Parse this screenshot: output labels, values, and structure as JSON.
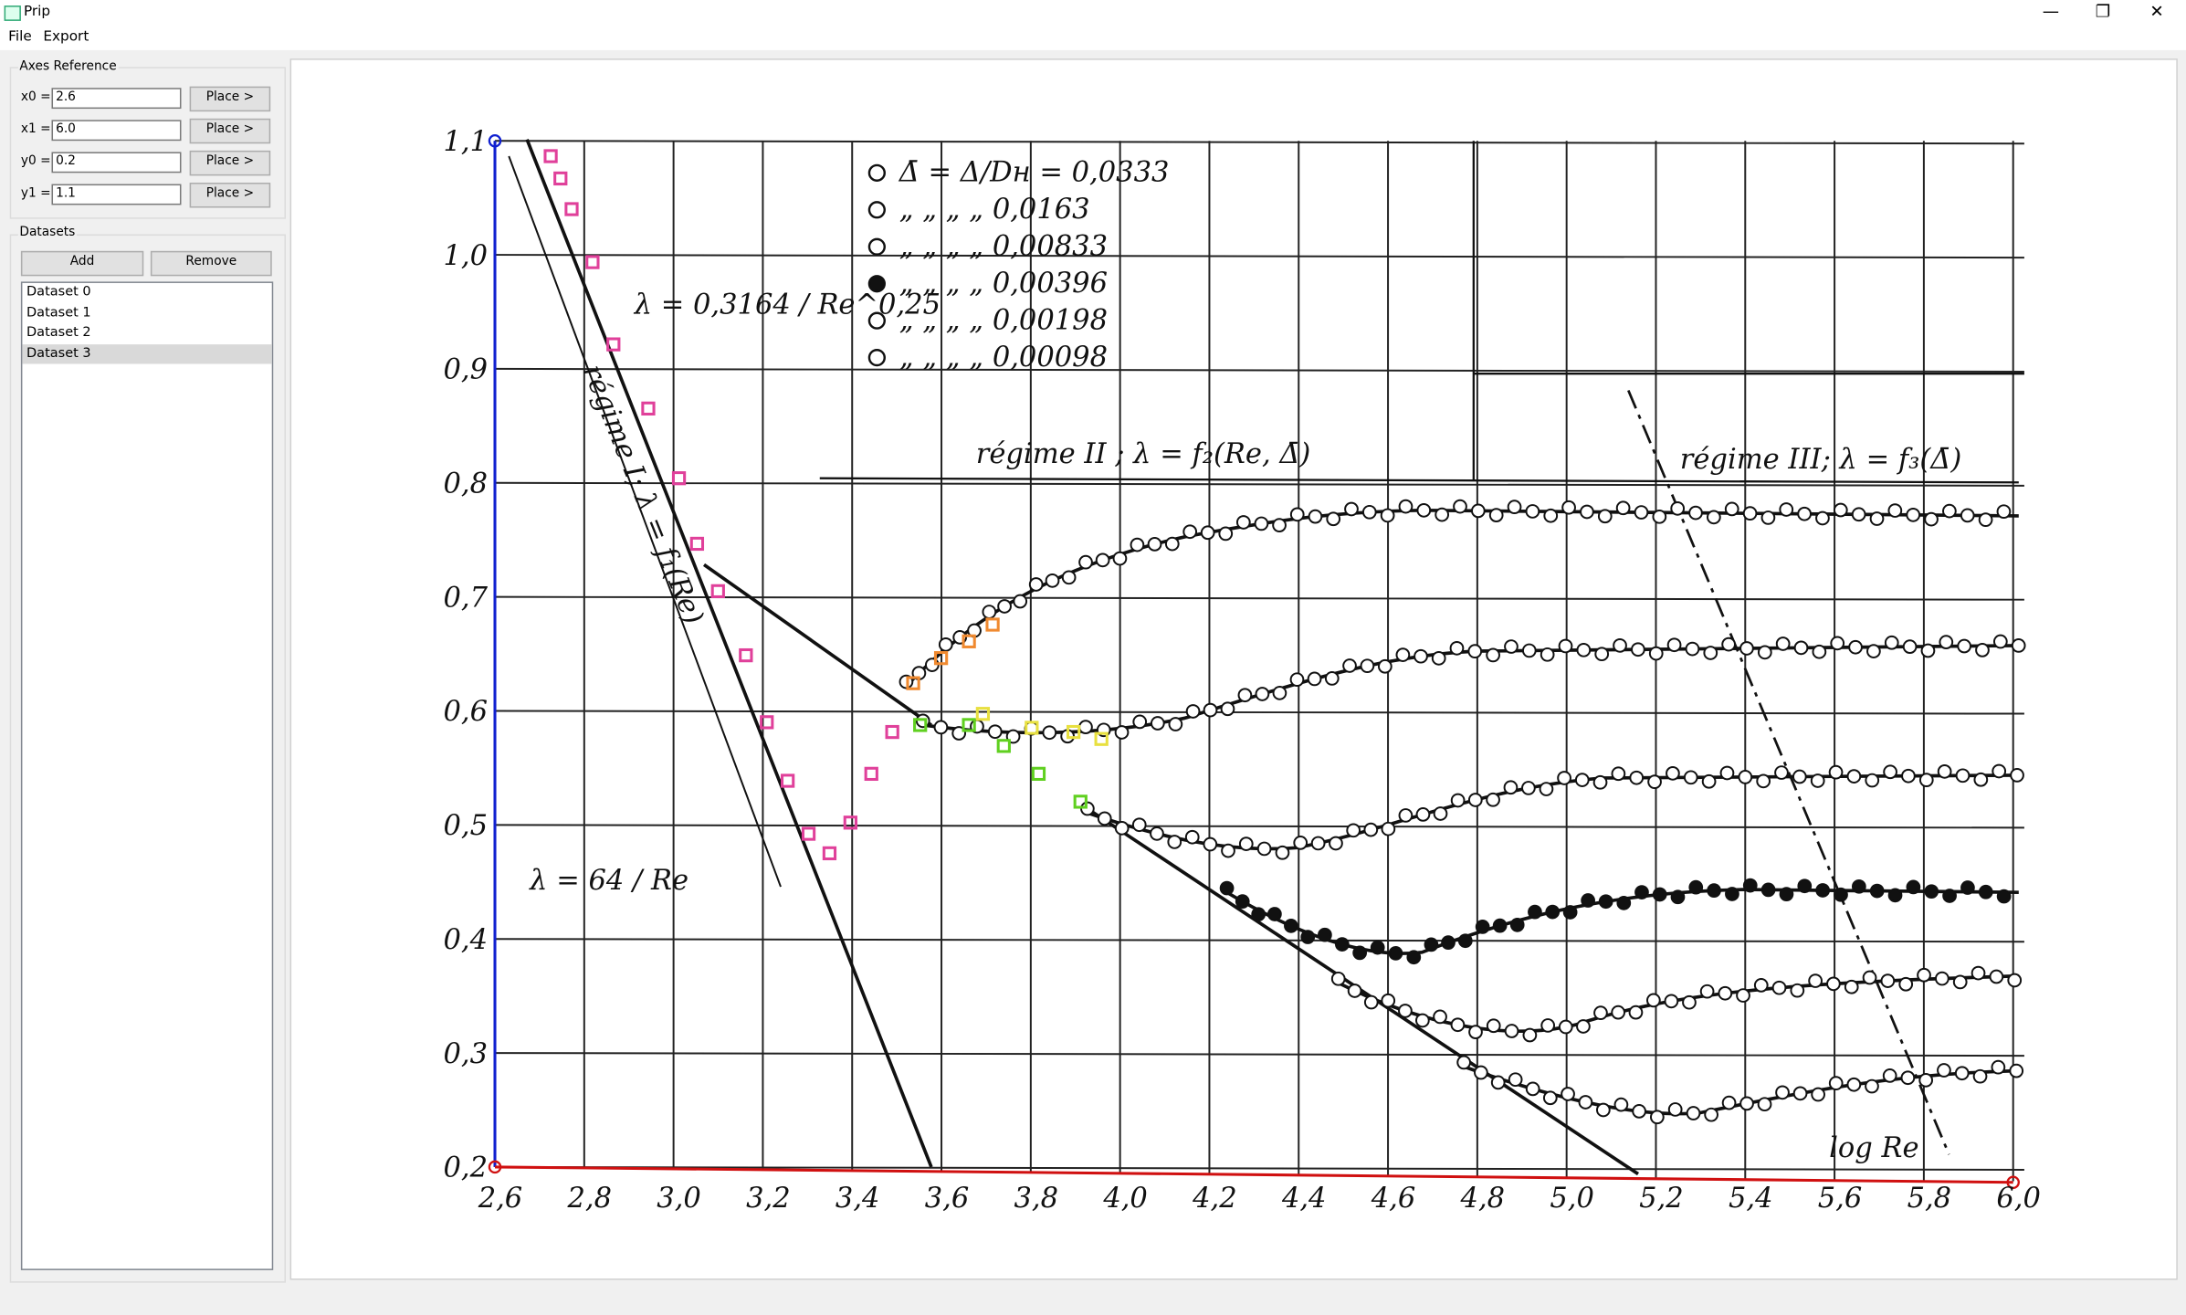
{
  "window": {
    "title": "Prip",
    "menu": [
      "File",
      "Export"
    ]
  },
  "axes_reference": {
    "title": "Axes Reference",
    "fields": [
      {
        "label": "x0 =",
        "value": "2.6",
        "button": "Place >"
      },
      {
        "label": "x1 =",
        "value": "6.0",
        "button": "Place >"
      },
      {
        "label": "y0 =",
        "value": "0.2",
        "button": "Place >"
      },
      {
        "label": "y1 =",
        "value": "1.1",
        "button": "Place >"
      }
    ]
  },
  "datasets": {
    "title": "Datasets",
    "buttons": [
      "Add",
      "Remove"
    ],
    "items": [
      "Dataset 0",
      "Dataset 1",
      "Dataset 2",
      "Dataset 3"
    ]
  },
  "plot_image": {
    "x_tick_labels": [
      "2,6",
      "2,8",
      "3,0",
      "3,2",
      "3,4",
      "3,6",
      "3,8",
      "4,0",
      "4,2",
      "4,4",
      "4,6",
      "4,8",
      "5,0",
      "5,2",
      "5,4",
      "5,6",
      "5,8",
      "6,0"
    ],
    "y_tick_labels": [
      "1,1",
      "1,0",
      "0,9",
      "0,8",
      "0,7",
      "0,6",
      "0,5",
      "0,4",
      "0,3",
      "0,2"
    ],
    "legend": [
      "Δ̄ = Δ/Dн = 0,0333",
      "„ „ „ „ 0,0163",
      "„ „ „ „ 0,00833",
      "„ „ „ „ 0,00396",
      "„ „ „ „ 0,00198",
      "„ „ „ „ 0,00098"
    ],
    "annotations": {
      "regime_1": "régime I; λ = f₁(Re)",
      "regime_2": "régime II ; λ = f₂(Re, Δ̄)",
      "regime_3": "régime III; λ = f₃(Δ̄)",
      "blasius": "λ = 0,3164 / Re^0,25",
      "laminar": "λ = 64 / Re",
      "x_axis": "log Re"
    }
  }
}
